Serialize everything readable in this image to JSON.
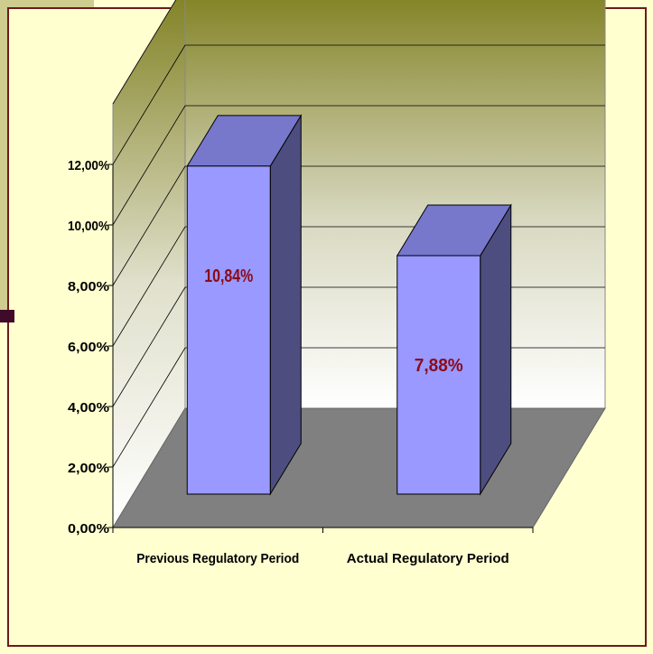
{
  "chart_data": {
    "type": "bar",
    "title": "",
    "xlabel": "",
    "ylabel": "",
    "categories": [
      "Previous Regulatory Period",
      "Actual Regulatory Period"
    ],
    "values": [
      10.84,
      7.88
    ],
    "data_labels": [
      "10,84%",
      "7,88%"
    ],
    "y_ticks": [
      "0,00%",
      "2,00%",
      "4,00%",
      "6,00%",
      "8,00%",
      "10,00%",
      "12,00%"
    ],
    "ylim": [
      0,
      14
    ],
    "grid": true,
    "legend": "none",
    "three_d": true
  },
  "colors": {
    "background": "#ffffd0",
    "bar_front": "#9999ff",
    "bar_side": "#4d4d80",
    "bar_top": "#7777cc",
    "floor": "#808080",
    "wall_top": "#7f7f1f",
    "data_label": "#8b0a1a",
    "frame": "#6b1b1b"
  }
}
